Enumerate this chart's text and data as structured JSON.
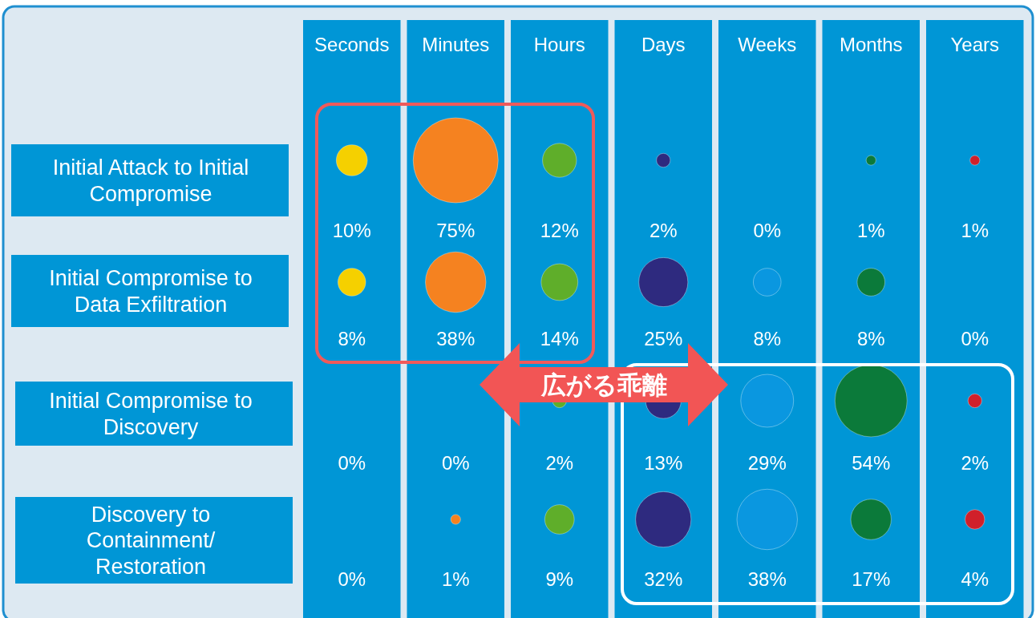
{
  "chart_data": {
    "type": "heatmap",
    "categories": [
      "Seconds",
      "Minutes",
      "Hours",
      "Days",
      "Weeks",
      "Months",
      "Years"
    ],
    "y_categories": [
      "Initial Attack to Initial\nCompromise",
      "Initial Compromise to\nData Exfiltration",
      "Initial Compromise to\nDiscovery",
      "Discovery to\nContainment/\nRestoration"
    ],
    "colors": [
      "#f5d000",
      "#f58220",
      "#5fae2a",
      "#2e2a7f",
      "#0a97e0",
      "#0b7a3a",
      "#d0202a"
    ],
    "cells": [
      [
        10,
        75,
        12,
        2,
        0,
        1,
        1
      ],
      [
        8,
        38,
        14,
        25,
        8,
        8,
        0
      ],
      [
        0,
        0,
        2,
        13,
        29,
        54,
        2
      ],
      [
        0,
        1,
        9,
        32,
        38,
        17,
        4
      ]
    ],
    "cell_labels": [
      [
        "10%",
        "75%",
        "12%",
        "2%",
        "0%",
        "1%",
        "1%"
      ],
      [
        "8%",
        "38%",
        "14%",
        "25%",
        "8%",
        "8%",
        "0%"
      ],
      [
        "0%",
        "0%",
        "2%",
        "13%",
        "29%",
        "54%",
        "2%"
      ],
      [
        "0%",
        "1%",
        "9%",
        "32%",
        "38%",
        "17%",
        "4%"
      ]
    ],
    "annotations": [
      "広がる乖離"
    ]
  }
}
